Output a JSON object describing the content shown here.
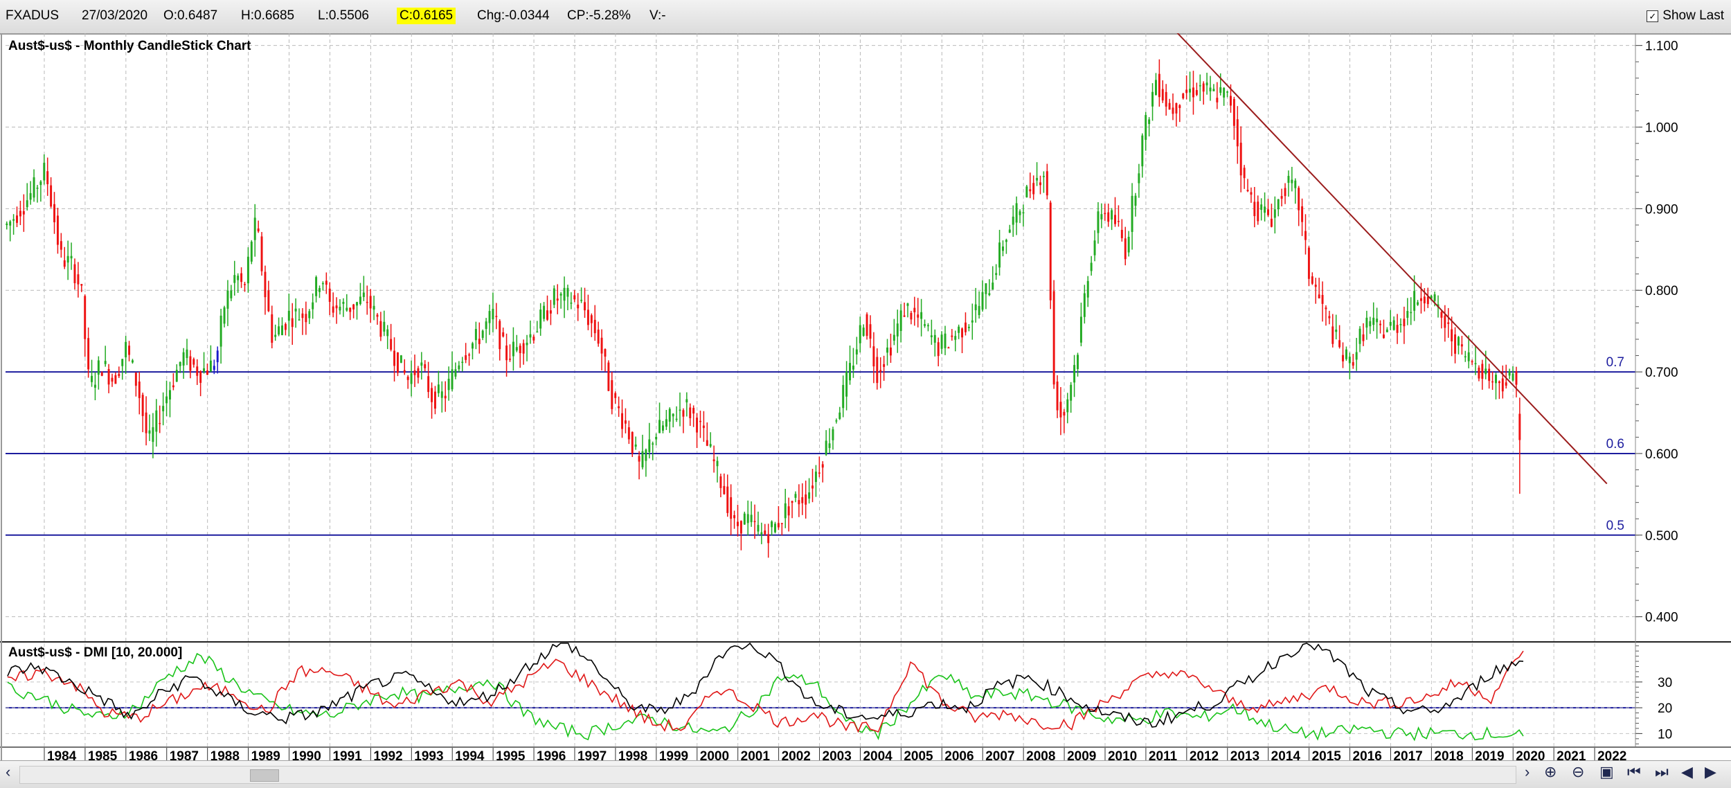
{
  "header": {
    "symbol": "FXADUS",
    "date": "27/03/2020",
    "open": "O:0.6487",
    "high": "H:0.6685",
    "low": "L:0.5506",
    "close": "C:0.6165",
    "change": "Chg:-0.0344",
    "change_pct": "CP:-5.28%",
    "volume": "V:-",
    "show_last_label": "Show Last",
    "show_last_checked": true
  },
  "chart_data": [
    {
      "type": "candlestick",
      "title": "Aust$-us$ - Monthly CandleStick Chart",
      "ylim": [
        0.37,
        1.115
      ],
      "y_ticks": [
        "1.100",
        "1.000",
        "0.900",
        "0.800",
        "0.700",
        "0.600",
        "0.500",
        "0.400"
      ],
      "x_ticks": [
        "1984",
        "1985",
        "1986",
        "1987",
        "1988",
        "1989",
        "1990",
        "1991",
        "1992",
        "1993",
        "1994",
        "1995",
        "1996",
        "1997",
        "1998",
        "1999",
        "2000",
        "2001",
        "2002",
        "2003",
        "2004",
        "2005",
        "2006",
        "2007",
        "2008",
        "2009",
        "2010",
        "2011",
        "2012",
        "2013",
        "2014",
        "2015",
        "2016",
        "2017",
        "2018",
        "2019",
        "2020",
        "2021",
        "2022"
      ],
      "x_range": [
        1983.05,
        2023.0
      ],
      "grid": true,
      "colors": {
        "up": "#22aa22",
        "down": "#ee1111",
        "highlight": "#1a1acc",
        "hline": "#1c1c9e",
        "trend": "#9b1c1c"
      },
      "horizontal_lines": [
        {
          "label": "0.7",
          "value": 0.7
        },
        {
          "label": "0.6",
          "value": 0.6
        },
        {
          "label": "0.5",
          "value": 0.5
        }
      ],
      "trendline": {
        "x": [
          2011.55,
          2022.3
        ],
        "y": [
          1.127,
          0.563
        ]
      },
      "price_path": [
        [
          1983.1,
          0.88
        ],
        [
          1983.7,
          0.92
        ],
        [
          1984.0,
          0.945
        ],
        [
          1984.1,
          0.93
        ],
        [
          1984.4,
          0.84
        ],
        [
          1984.7,
          0.83
        ],
        [
          1984.9,
          0.8
        ],
        [
          1985.1,
          0.68
        ],
        [
          1985.4,
          0.71
        ],
        [
          1985.7,
          0.69
        ],
        [
          1986.0,
          0.73
        ],
        [
          1986.3,
          0.68
        ],
        [
          1986.55,
          0.61
        ],
        [
          1986.9,
          0.66
        ],
        [
          1987.4,
          0.72
        ],
        [
          1987.8,
          0.7
        ],
        [
          1988.2,
          0.71
        ],
        [
          1988.4,
          0.78
        ],
        [
          1988.7,
          0.82
        ],
        [
          1988.9,
          0.8
        ],
        [
          1989.1,
          0.87
        ],
        [
          1989.2,
          0.88
        ],
        [
          1989.4,
          0.8
        ],
        [
          1989.6,
          0.74
        ],
        [
          1990.0,
          0.77
        ],
        [
          1990.4,
          0.77
        ],
        [
          1990.8,
          0.82
        ],
        [
          1991.0,
          0.78
        ],
        [
          1991.5,
          0.78
        ],
        [
          1991.9,
          0.79
        ],
        [
          1992.3,
          0.75
        ],
        [
          1992.6,
          0.72
        ],
        [
          1992.9,
          0.69
        ],
        [
          1993.2,
          0.71
        ],
        [
          1993.5,
          0.67
        ],
        [
          1993.8,
          0.67
        ],
        [
          1994.2,
          0.72
        ],
        [
          1994.6,
          0.74
        ],
        [
          1995.0,
          0.77
        ],
        [
          1995.3,
          0.72
        ],
        [
          1995.6,
          0.73
        ],
        [
          1996.0,
          0.75
        ],
        [
          1996.5,
          0.79
        ],
        [
          1996.9,
          0.79
        ],
        [
          1997.2,
          0.78
        ],
        [
          1997.6,
          0.74
        ],
        [
          1997.9,
          0.67
        ],
        [
          1998.3,
          0.63
        ],
        [
          1998.6,
          0.58
        ],
        [
          1998.9,
          0.62
        ],
        [
          1999.3,
          0.64
        ],
        [
          1999.7,
          0.66
        ],
        [
          2000.0,
          0.64
        ],
        [
          2000.4,
          0.59
        ],
        [
          2000.7,
          0.55
        ],
        [
          2000.9,
          0.51
        ],
        [
          2001.2,
          0.52
        ],
        [
          2001.6,
          0.5
        ],
        [
          2001.9,
          0.51
        ],
        [
          2002.3,
          0.54
        ],
        [
          2002.7,
          0.55
        ],
        [
          2003.1,
          0.6
        ],
        [
          2003.5,
          0.66
        ],
        [
          2003.8,
          0.71
        ],
        [
          2004.1,
          0.77
        ],
        [
          2004.4,
          0.7
        ],
        [
          2004.8,
          0.74
        ],
        [
          2005.1,
          0.78
        ],
        [
          2005.5,
          0.76
        ],
        [
          2005.9,
          0.73
        ],
        [
          2006.2,
          0.74
        ],
        [
          2006.6,
          0.76
        ],
        [
          2006.9,
          0.78
        ],
        [
          2007.2,
          0.81
        ],
        [
          2007.5,
          0.86
        ],
        [
          2007.8,
          0.89
        ],
        [
          2008.2,
          0.93
        ],
        [
          2008.55,
          0.95
        ],
        [
          2008.75,
          0.68
        ],
        [
          2008.95,
          0.64
        ],
        [
          2009.3,
          0.72
        ],
        [
          2009.6,
          0.83
        ],
        [
          2009.9,
          0.9
        ],
        [
          2010.3,
          0.88
        ],
        [
          2010.5,
          0.85
        ],
        [
          2010.9,
          0.98
        ],
        [
          2011.25,
          1.06
        ],
        [
          2011.6,
          1.02
        ],
        [
          2011.9,
          1.04
        ],
        [
          2012.3,
          1.05
        ],
        [
          2012.6,
          1.04
        ],
        [
          2012.9,
          1.04
        ],
        [
          2013.1,
          1.03
        ],
        [
          2013.4,
          0.93
        ],
        [
          2013.7,
          0.9
        ],
        [
          2014.1,
          0.89
        ],
        [
          2014.4,
          0.93
        ],
        [
          2014.7,
          0.92
        ],
        [
          2015.0,
          0.82
        ],
        [
          2015.4,
          0.77
        ],
        [
          2015.8,
          0.72
        ],
        [
          2016.0,
          0.71
        ],
        [
          2016.4,
          0.76
        ],
        [
          2016.8,
          0.75
        ],
        [
          2017.2,
          0.76
        ],
        [
          2017.5,
          0.78
        ],
        [
          2017.8,
          0.8
        ],
        [
          2018.1,
          0.78
        ],
        [
          2018.4,
          0.75
        ],
        [
          2018.8,
          0.72
        ],
        [
          2019.1,
          0.71
        ],
        [
          2019.5,
          0.69
        ],
        [
          2019.9,
          0.69
        ],
        [
          2020.1,
          0.7
        ],
        [
          2020.2,
          0.64
        ]
      ]
    },
    {
      "type": "line",
      "title": "Aust$-us$ - DMI [10, 20.000]",
      "ylim": [
        5,
        45
      ],
      "y_ticks": [
        "30",
        "20",
        "10"
      ],
      "reference_line": 20,
      "series": [
        {
          "color": "#19c319",
          "values": [
            28,
            24,
            19,
            16,
            20,
            33,
            40,
            30,
            22,
            18,
            17,
            22,
            26,
            24,
            28,
            31,
            18,
            12,
            10,
            14,
            16,
            12,
            10,
            18,
            32,
            30,
            14,
            10,
            22,
            33,
            24,
            26,
            24,
            20,
            16,
            15,
            18,
            16,
            20,
            14,
            10,
            10,
            12,
            10,
            10,
            10,
            10,
            9
          ]
        },
        {
          "color": "#e01818",
          "values": [
            30,
            34,
            30,
            18,
            16,
            22,
            28,
            26,
            18,
            34,
            34,
            28,
            20,
            26,
            30,
            22,
            30,
            38,
            30,
            22,
            14,
            12,
            28,
            22,
            14,
            18,
            12,
            12,
            38,
            22,
            16,
            18,
            14,
            14,
            22,
            30,
            34,
            30,
            22,
            20,
            24,
            28,
            22,
            22,
            24,
            30,
            24,
            42
          ]
        },
        {
          "color": "#000000",
          "values": [
            34,
            36,
            30,
            24,
            16,
            26,
            32,
            24,
            18,
            16,
            18,
            24,
            30,
            32,
            24,
            22,
            28,
            38,
            46,
            36,
            22,
            18,
            24,
            40,
            46,
            36,
            22,
            18,
            16,
            18,
            22,
            20,
            28,
            32,
            26,
            20,
            16,
            14,
            18,
            22,
            30,
            38,
            46,
            38,
            26,
            20,
            18,
            24,
            34,
            38
          ]
        }
      ]
    }
  ]
}
